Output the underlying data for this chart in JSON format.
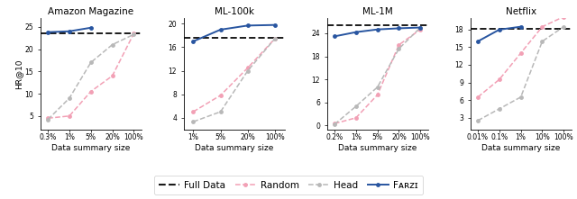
{
  "panels": [
    {
      "title": "Amazon Magazine",
      "xticks": [
        "0.3%",
        "1%",
        "5%",
        "20%",
        "100%"
      ],
      "xvals": [
        0,
        1,
        2,
        3,
        4
      ],
      "full_data": 23.5,
      "ylim": [
        2,
        27
      ],
      "yticks": [
        5,
        10,
        15,
        20,
        25
      ],
      "random": {
        "x": [
          0,
          1,
          2,
          3,
          4
        ],
        "y": [
          4.5,
          5.0,
          10.5,
          14.0,
          23.5
        ]
      },
      "head": {
        "x": [
          0,
          1,
          2,
          3,
          4
        ],
        "y": [
          4.2,
          9.0,
          17.0,
          21.0,
          23.3
        ]
      },
      "farzi": {
        "x": [
          0,
          1,
          2
        ],
        "y": [
          23.8,
          24.0,
          24.8
        ]
      }
    },
    {
      "title": "ML-100k",
      "xticks": [
        "1%",
        "5%",
        "20%",
        "100%"
      ],
      "xvals": [
        0,
        1,
        2,
        3
      ],
      "full_data": 17.6,
      "ylim": [
        2,
        21
      ],
      "yticks": [
        4,
        8,
        12,
        16,
        20
      ],
      "random": {
        "x": [
          0,
          1,
          2,
          3
        ],
        "y": [
          5.0,
          7.8,
          12.5,
          17.5
        ]
      },
      "head": {
        "x": [
          0,
          1,
          2,
          3
        ],
        "y": [
          3.3,
          5.0,
          12.0,
          17.5
        ]
      },
      "farzi": {
        "x": [
          0,
          1,
          2,
          3
        ],
        "y": [
          17.0,
          19.0,
          19.7,
          19.8
        ]
      }
    },
    {
      "title": "ML-1M",
      "xticks": [
        "0.2%",
        "1%",
        "5%",
        "20%",
        "100%"
      ],
      "xvals": [
        0,
        1,
        2,
        3,
        4
      ],
      "full_data": 26.2,
      "ylim": [
        -1,
        28
      ],
      "yticks": [
        0,
        6,
        12,
        18,
        24
      ],
      "random": {
        "x": [
          0,
          1,
          2,
          3,
          4
        ],
        "y": [
          0.5,
          2.0,
          8.0,
          21.0,
          25.0
        ]
      },
      "head": {
        "x": [
          0,
          1,
          2,
          3,
          4
        ],
        "y": [
          0.3,
          5.0,
          10.0,
          20.0,
          25.5
        ]
      },
      "farzi": {
        "x": [
          0,
          1,
          2,
          3,
          4
        ],
        "y": [
          23.2,
          24.3,
          25.0,
          25.3,
          25.5
        ]
      }
    },
    {
      "title": "Netflix",
      "xticks": [
        "0.01%",
        "0.1%",
        "1%",
        "10%",
        "100%"
      ],
      "xvals": [
        0,
        1,
        2,
        3,
        4
      ],
      "full_data": 18.2,
      "ylim": [
        1,
        20
      ],
      "yticks": [
        3,
        6,
        9,
        12,
        15,
        18
      ],
      "random": {
        "x": [
          0,
          1,
          2,
          3,
          4
        ],
        "y": [
          6.5,
          9.5,
          14.0,
          18.5,
          20.2
        ]
      },
      "head": {
        "x": [
          0,
          1,
          2,
          3,
          4
        ],
        "y": [
          2.5,
          4.5,
          6.5,
          16.0,
          18.5
        ]
      },
      "farzi": {
        "x": [
          0,
          1,
          2
        ],
        "y": [
          16.0,
          18.0,
          18.5
        ]
      }
    }
  ],
  "ylabel": "HR@10",
  "xlabel": "Data summary size",
  "colors": {
    "full_data": "#1a1a1a",
    "random": "#f2a0b5",
    "head": "#b8b8b8",
    "farzi": "#2855a0"
  }
}
